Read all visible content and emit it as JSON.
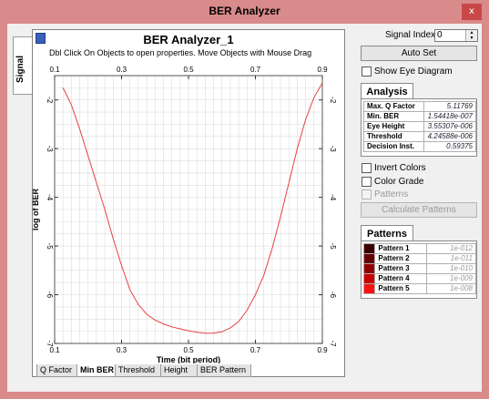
{
  "window": {
    "title": "BER Analyzer",
    "close_label": "x"
  },
  "side_tab": {
    "label": "Signal"
  },
  "plot": {
    "title": "BER Analyzer_1",
    "subtitle": "Dbl Click On Objects to open properties.  Move Objects with Mouse Drag"
  },
  "bottom_tabs": [
    "Q Factor",
    "Min BER",
    "Threshold",
    "Height",
    "BER Pattern"
  ],
  "controls": {
    "signal_index_label": "Signal Index:",
    "signal_index_value": "0",
    "auto_set_label": "Auto Set",
    "show_eye_label": "Show Eye Diagram",
    "invert_colors_label": "Invert Colors",
    "color_grade_label": "Color Grade",
    "patterns_check_label": "Patterns",
    "calculate_patterns_label": "Calculate Patterns"
  },
  "analysis": {
    "tab": "Analysis",
    "rows": [
      {
        "k": "Max. Q Factor",
        "v": "5.11769"
      },
      {
        "k": "Min. BER",
        "v": "1.54418e-007"
      },
      {
        "k": "Eye Height",
        "v": "3.55307e-006"
      },
      {
        "k": "Threshold",
        "v": "4.24588e-006"
      },
      {
        "k": "Decision Inst.",
        "v": "0.59375"
      }
    ]
  },
  "patterns": {
    "tab": "Patterns",
    "rows": [
      {
        "k": "Pattern 1",
        "v": "1e-012",
        "color": "#3a0000"
      },
      {
        "k": "Pattern 2",
        "v": "1e-011",
        "color": "#650000"
      },
      {
        "k": "Pattern 3",
        "v": "1e-010",
        "color": "#900000"
      },
      {
        "k": "Pattern 4",
        "v": "1e-009",
        "color": "#c80000"
      },
      {
        "k": "Pattern 5",
        "v": "1e-008",
        "color": "#ff1010"
      }
    ]
  },
  "chart_data": {
    "type": "line",
    "xlabel": "Time (bit period)",
    "ylabel": "log of BER",
    "xlim": [
      0.1,
      0.9
    ],
    "ylim": [
      -7,
      -1.5
    ],
    "x_ticks": [
      "0.1",
      "0.3",
      "0.5",
      "0.7",
      "0.9"
    ],
    "y_ticks": [
      "-2",
      "-3",
      "-4",
      "-5",
      "-6",
      "-7"
    ],
    "grid": true,
    "line_color": "#e84040",
    "series": [
      {
        "x": [
          0.125,
          0.15,
          0.175,
          0.2,
          0.225,
          0.25,
          0.275,
          0.3,
          0.325,
          0.35,
          0.375,
          0.4,
          0.425,
          0.45,
          0.475,
          0.5,
          0.525,
          0.55,
          0.575,
          0.6,
          0.625,
          0.65,
          0.675,
          0.7,
          0.725,
          0.75,
          0.775,
          0.8,
          0.825,
          0.85,
          0.875,
          0.9
        ],
        "y": [
          -1.75,
          -2.1,
          -2.6,
          -3.15,
          -3.7,
          -4.25,
          -4.85,
          -5.4,
          -5.9,
          -6.2,
          -6.4,
          -6.52,
          -6.6,
          -6.66,
          -6.7,
          -6.74,
          -6.77,
          -6.79,
          -6.79,
          -6.76,
          -6.68,
          -6.55,
          -6.32,
          -6.0,
          -5.6,
          -5.05,
          -4.4,
          -3.7,
          -3.0,
          -2.4,
          -1.95,
          -1.65
        ]
      }
    ]
  }
}
